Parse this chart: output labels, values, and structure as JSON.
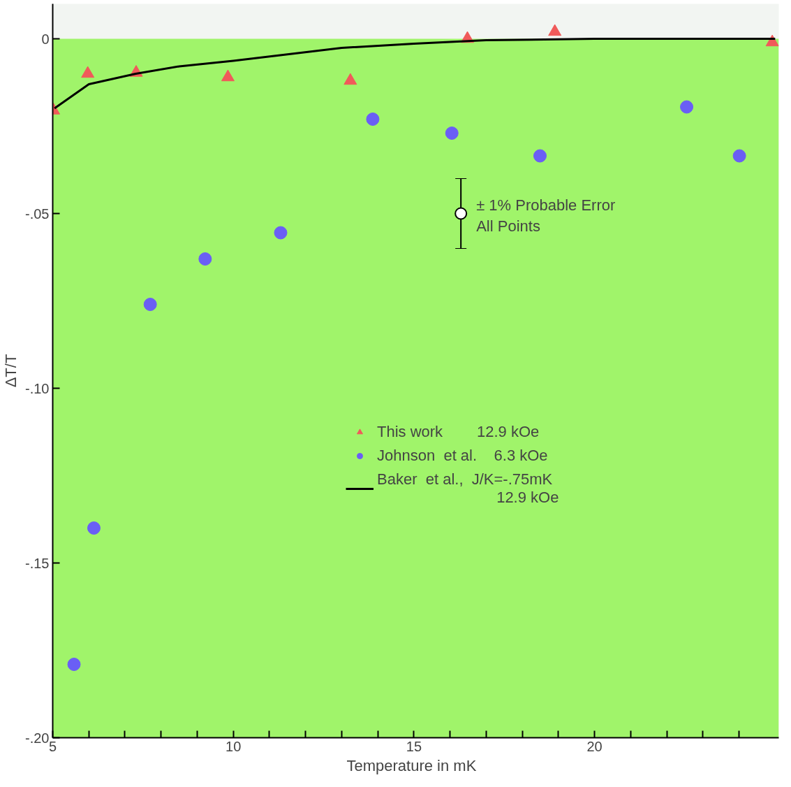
{
  "chart_data": {
    "type": "scatter",
    "xlabel": "Temperature  in  mK",
    "ylabel": "ΔT/T",
    "xlim": [
      5,
      25.1
    ],
    "ylim": [
      -0.2,
      0.01
    ],
    "xticks": [
      5,
      {
        "value": 6,
        "label": null
      },
      {
        "value": 7,
        "label": null
      },
      {
        "value": 8,
        "label": null
      },
      {
        "value": 9,
        "label": null
      },
      10,
      {
        "value": 11,
        "label": null
      },
      {
        "value": 12,
        "label": null
      },
      {
        "value": 13,
        "label": null
      },
      {
        "value": 14,
        "label": null
      },
      15,
      {
        "value": 16,
        "label": null
      },
      {
        "value": 17,
        "label": null
      },
      {
        "value": 18,
        "label": null
      },
      {
        "value": 19,
        "label": null
      },
      20,
      {
        "value": 21,
        "label": null
      },
      {
        "value": 22,
        "label": null
      },
      {
        "value": 23,
        "label": null
      },
      {
        "value": 24,
        "label": null
      }
    ],
    "yticks": [
      {
        "value": 0,
        "label": "0"
      },
      {
        "value": -0.05,
        "label": "-.05"
      },
      {
        "value": -0.1,
        "label": "-.10"
      },
      {
        "value": -0.15,
        "label": "-.15"
      },
      {
        "value": -0.2,
        "label": "-.20"
      }
    ],
    "grid": false,
    "legend": "right",
    "bands": [
      {
        "axis": "y",
        "from": -0.2,
        "to": 0,
        "color": "#a0f46a"
      }
    ],
    "series": [
      {
        "name": "This work        12.9 kOe",
        "marker": "triangle",
        "color": "#f05a5a",
        "x": [
          5.02,
          5.97,
          7.31,
          9.85,
          13.24,
          16.48,
          18.9,
          24.92
        ],
        "values": [
          -0.0205,
          -0.01,
          -0.0097,
          -0.011,
          -0.012,
          0.0,
          0.002,
          -0.001
        ]
      },
      {
        "name": "Johnson  et al.    6.3 kOe",
        "marker": "circle",
        "color": "#6a5ef5",
        "x": [
          5.59,
          6.14,
          7.7,
          9.22,
          11.31,
          13.86,
          16.05,
          18.49,
          22.55,
          24.01
        ],
        "values": [
          -0.179,
          -0.14,
          -0.076,
          -0.063,
          -0.0555,
          -0.023,
          -0.027,
          -0.0335,
          -0.0195,
          -0.0335
        ]
      },
      {
        "name": "Baker  et al.,  J/K=-.75mK\n                            12.9 kOe",
        "type": "line",
        "line_style": "solid",
        "color": "#000000",
        "x": [
          5.05,
          6,
          7.3,
          8.5,
          10,
          13,
          15,
          17,
          20,
          25
        ],
        "values": [
          -0.0199,
          -0.013,
          -0.01,
          -0.0079,
          -0.0063,
          -0.0026,
          -0.0014,
          -0.0004,
          0.0,
          0.0
        ]
      },
      {
        "marker": "circle",
        "color": "#000000",
        "x": [
          16.3
        ],
        "values": [
          -0.05
        ],
        "errors": [
          0.01
        ]
      }
    ],
    "annotations": [
      {
        "text": "± 1% Probable Error\n  All Points",
        "x": 16.3,
        "y": -0.05
      }
    ]
  }
}
